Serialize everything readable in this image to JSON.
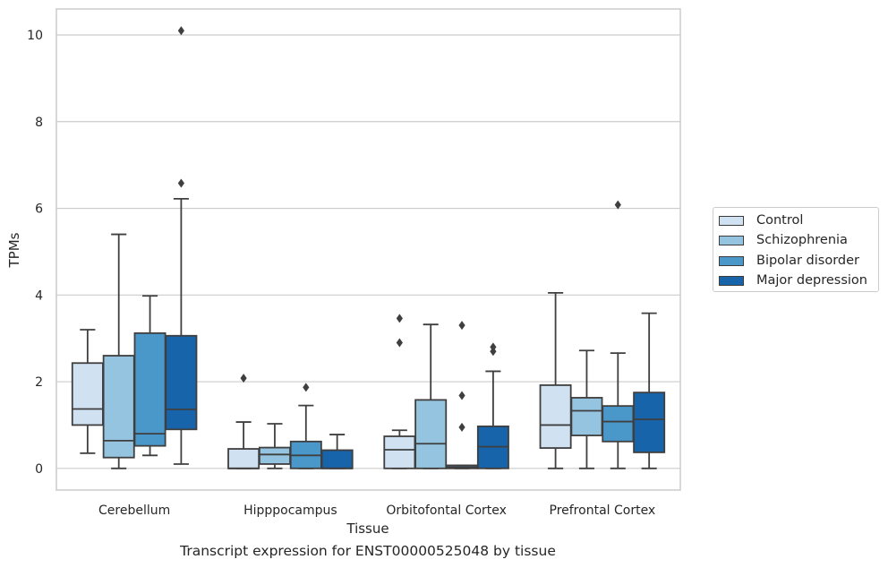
{
  "chart_data": {
    "type": "box",
    "title": "",
    "caption": "Transcript expression for ENST00000525048 by tissue",
    "xlabel": "Tissue",
    "ylabel": "TPMs",
    "ylim": [
      -0.5,
      10.6
    ],
    "yticks": [
      0,
      2,
      4,
      6,
      8,
      10
    ],
    "grid": true,
    "legend_position": "right",
    "categories": [
      "Cerebellum",
      "Hipppocampus",
      "Orbitofontal Cortex",
      "Prefrontal Cortex"
    ],
    "series": [
      {
        "name": "Control",
        "color": "#d0e1f2",
        "boxes": [
          {
            "whislo": 0.35,
            "q1": 1.0,
            "med": 1.37,
            "q3": 2.43,
            "whishi": 3.2,
            "fliers": []
          },
          {
            "whislo": 0.0,
            "q1": 0.0,
            "med": 0.0,
            "q3": 0.45,
            "whishi": 1.07,
            "fliers": [
              2.08
            ]
          },
          {
            "whislo": 0.0,
            "q1": 0.0,
            "med": 0.43,
            "q3": 0.74,
            "whishi": 0.88,
            "fliers": [
              2.9,
              3.46
            ]
          },
          {
            "whislo": 0.0,
            "q1": 0.47,
            "med": 1.0,
            "q3": 1.92,
            "whishi": 4.05,
            "fliers": []
          }
        ]
      },
      {
        "name": "Schizophrenia",
        "color": "#94c4df",
        "boxes": [
          {
            "whislo": 0.0,
            "q1": 0.25,
            "med": 0.64,
            "q3": 2.6,
            "whishi": 5.4,
            "fliers": []
          },
          {
            "whislo": 0.0,
            "q1": 0.1,
            "med": 0.32,
            "q3": 0.48,
            "whishi": 1.03,
            "fliers": []
          },
          {
            "whislo": 0.0,
            "q1": 0.0,
            "med": 0.57,
            "q3": 1.58,
            "whishi": 3.32,
            "fliers": []
          },
          {
            "whislo": 0.0,
            "q1": 0.76,
            "med": 1.33,
            "q3": 1.63,
            "whishi": 2.72,
            "fliers": []
          }
        ]
      },
      {
        "name": "Bipolar disorder",
        "color": "#4a98c9",
        "boxes": [
          {
            "whislo": 0.3,
            "q1": 0.52,
            "med": 0.8,
            "q3": 3.12,
            "whishi": 3.98,
            "fliers": []
          },
          {
            "whislo": 0.0,
            "q1": 0.0,
            "med": 0.3,
            "q3": 0.62,
            "whishi": 1.45,
            "fliers": [
              1.87
            ]
          },
          {
            "whislo": 0.0,
            "q1": 0.0,
            "med": 0.03,
            "q3": 0.07,
            "whishi": 0.07,
            "fliers": [
              0.95,
              1.68,
              3.3
            ]
          },
          {
            "whislo": 0.0,
            "q1": 0.62,
            "med": 1.08,
            "q3": 1.44,
            "whishi": 2.66,
            "fliers": [
              6.08
            ]
          }
        ]
      },
      {
        "name": "Major depression",
        "color": "#1764ab",
        "boxes": [
          {
            "whislo": 0.1,
            "q1": 0.9,
            "med": 1.36,
            "q3": 3.06,
            "whishi": 6.22,
            "fliers": [
              6.58,
              10.1
            ]
          },
          {
            "whislo": 0.0,
            "q1": 0.0,
            "med": 0.0,
            "q3": 0.42,
            "whishi": 0.78,
            "fliers": []
          },
          {
            "whislo": 0.0,
            "q1": 0.0,
            "med": 0.5,
            "q3": 0.97,
            "whishi": 2.24,
            "fliers": [
              2.7,
              2.8
            ]
          },
          {
            "whislo": 0.0,
            "q1": 0.37,
            "med": 1.13,
            "q3": 1.75,
            "whishi": 3.58,
            "fliers": []
          }
        ]
      }
    ]
  }
}
